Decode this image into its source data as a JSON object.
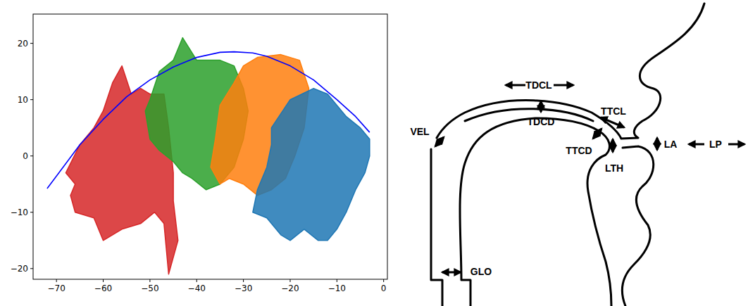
{
  "chart_data": {
    "type": "line",
    "xlim": [
      -75,
      0.8
    ],
    "ylim": [
      -21.9,
      25.2
    ],
    "xticks": [
      {
        "value": -70,
        "label": "−70"
      },
      {
        "value": -60,
        "label": "−60"
      },
      {
        "value": -50,
        "label": "−50"
      },
      {
        "value": -40,
        "label": "−40"
      },
      {
        "value": -30,
        "label": "−30"
      },
      {
        "value": -20,
        "label": "−20"
      },
      {
        "value": -10,
        "label": "−10"
      },
      0
    ],
    "yticks": [
      {
        "value": -20,
        "label": "−20"
      },
      {
        "value": -10,
        "label": "−10"
      },
      0,
      10,
      20
    ],
    "grid": false,
    "series": [
      {
        "type": "area",
        "color": "#d62728",
        "x": [
          -66,
          -68,
          -65,
          -62,
          -60,
          -58,
          -56,
          -54,
          -52,
          -50,
          -47,
          -46,
          -45,
          -45,
          -44,
          -46,
          -47,
          -49,
          -52,
          -56,
          -60,
          -62,
          -66,
          -67
        ],
        "values": [
          -5,
          -3,
          2,
          5,
          8,
          13,
          16,
          11,
          12,
          11,
          11,
          5,
          -3,
          -8,
          -15,
          -21,
          -12,
          -10,
          -12,
          -13,
          -15,
          -11,
          -10,
          -7
        ]
      },
      {
        "type": "area",
        "color": "#2ca02c",
        "x": [
          -50,
          -48,
          -45,
          -43,
          -40,
          -35,
          -32,
          -30,
          -29,
          -30,
          -32,
          -35,
          -38,
          -41,
          -43,
          -45,
          -48,
          -50,
          -51
        ],
        "values": [
          10,
          15,
          17,
          21,
          17,
          17,
          16,
          12,
          8,
          3,
          -2,
          -5,
          -6,
          -4,
          -3,
          -1,
          1,
          3,
          8
        ]
      },
      {
        "type": "area",
        "color": "#ff7f0e",
        "x": [
          -36,
          -35,
          -32,
          -30,
          -27,
          -22,
          -18,
          -16,
          -17,
          -19,
          -21,
          -24,
          -27,
          -30,
          -33,
          -35,
          -37
        ],
        "values": [
          3,
          9,
          13,
          16,
          17.5,
          18,
          17,
          12,
          5,
          0,
          -4,
          -6,
          -7,
          -5,
          -4,
          -5,
          -2
        ]
      },
      {
        "type": "area",
        "color": "#1f77b4",
        "x": [
          -24,
          -20,
          -15,
          -12,
          -8,
          -5,
          -3,
          -3,
          -4,
          -6,
          -8,
          -10,
          -12,
          -14,
          -17,
          -20,
          -22,
          -25,
          -28,
          -27,
          -25,
          -24
        ],
        "values": [
          5,
          10,
          12,
          11,
          7,
          5,
          3,
          0,
          -3,
          -6,
          -10,
          -13,
          -15,
          -15,
          -13,
          -15,
          -14,
          -11,
          -10,
          -6,
          -2,
          2
        ]
      },
      {
        "type": "line",
        "color": "#0000ff",
        "x": [
          -72,
          -65,
          -60,
          -55,
          -50,
          -45,
          -40,
          -35,
          -32,
          -28,
          -25,
          -20,
          -15,
          -10,
          -6,
          -3
        ],
        "values": [
          -5.8,
          2,
          6.5,
          10.5,
          13.5,
          15.8,
          17.5,
          18.4,
          18.5,
          18.3,
          17.7,
          16,
          13.5,
          10,
          7,
          4.2
        ]
      }
    ]
  },
  "diagram": {
    "labels": [
      "VEL",
      "TDCL",
      "TDCD",
      "TTCL",
      "TTCD",
      "LTH",
      "LA",
      "LP",
      "GLO"
    ]
  }
}
